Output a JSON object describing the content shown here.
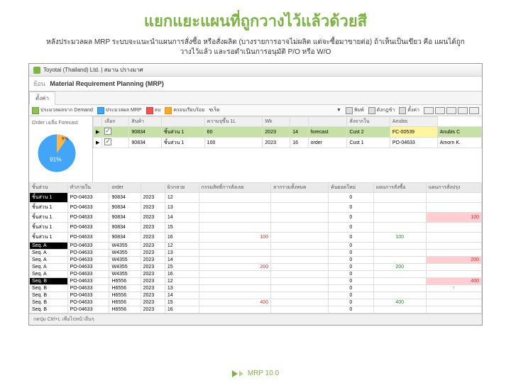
{
  "slide": {
    "title": "แยกแยะแผนที่ถูกวางไว้แล้วด้วยสี",
    "title_color": "#7cb342",
    "subtitle": "หลังประมวลผล MRP ระบบจะแนะนำแผนการสั่งซื้อ หรือสั่งผลิต (บางรายการอาจไม่ผลิต แต่จะซื้อมาขายต่อ) ถ้าเห็นเป็นเขียว คือ แผนได้ถูกวางไว้แล้ว และรอดำเนินการอนุมัติ P/O หรือ W/O"
  },
  "window": {
    "title": "Toyotai (Thailand) Ltd. | สมาน ปรางมาศ",
    "subheader": "Material Requirement Planning (MRP)",
    "back_label": "ย้อน",
    "tabs": {
      "tab1": "ตั้งค่า",
      "tab1_active": true
    },
    "toolbar": {
      "t1": "ประมวลผลจาก Demand",
      "t2": "ประมวลผล MRP",
      "t3": "ลบ",
      "t4": "ครอบเรียบร้อย",
      "t5": "ชเร็ด",
      "t6": "พิมพ์",
      "t7": "ดังกฎข้า",
      "t8": "ตั้งค่า"
    },
    "pie": {
      "label": "Order เฉลี่ย Forecast",
      "slices": [
        {
          "pct": 9,
          "color": "#ffb74d",
          "label": "9%"
        },
        {
          "pct": 91,
          "color": "#42a5f5",
          "label": "91%"
        }
      ]
    },
    "top_grid": {
      "headers": [
        "",
        "เลือก",
        "สินค้า",
        "",
        "ความจุขึ้น 1L",
        "Wk",
        "",
        "",
        "สั่งจากใน",
        "Anubis"
      ],
      "rows": [
        {
          "green": true,
          "chk": true,
          "c1": "90834",
          "c2": "ชิ้นส่วน 1",
          "c3": "60",
          "c4": "2023",
          "c5": "14",
          "c6": "forecast",
          "c7": "Cust 2",
          "c8": "FC-00539",
          "c9": "Anubis C",
          "yellow8": true
        },
        {
          "green": false,
          "chk": true,
          "c1": "90834",
          "c2": "ชิ้นส่วน 1",
          "c3": "100",
          "c4": "2023",
          "c5": "16",
          "c6": "order",
          "c7": "Cust 1",
          "c8": "PO-04633",
          "c9": "Amorn K."
        }
      ]
    },
    "main_grid": {
      "headers": [
        "ชิ้นส่วน",
        "ทำภายใน",
        "order",
        "",
        "ผิวกลวย",
        "กรรมสิทธิ์การสั่งเลย",
        "ลากรวมทั้งหมด",
        "ค้นยอดใหม่",
        "แผนการสั่งซื้อ",
        "แผนการสั่งปรุง"
      ],
      "rows": [
        {
          "black0": true,
          "c0": "ชิ้นส่วน 1",
          "c1": "PO-04633",
          "c2": "90834",
          "c3": "2023",
          "c4": "12",
          "c5": "",
          "c6": "",
          "c7": "0",
          "c8": "",
          "c9": ""
        },
        {
          "c0": "ชิ้นส่วน 1",
          "c1": "PO-04633",
          "c2": "90834",
          "c3": "2023",
          "c4": "13",
          "c5": "",
          "c6": "",
          "c7": "0",
          "c8": "",
          "c9": ""
        },
        {
          "c0": "ชิ้นส่วน 1",
          "c1": "PO-04633",
          "c2": "90834",
          "c3": "2023",
          "c4": "14",
          "c5": "",
          "c6": "",
          "c7": "0",
          "c8": "",
          "c9": "100",
          "red9": true
        },
        {
          "c0": "ชิ้นส่วน 1",
          "c1": "PO-04633",
          "c2": "90834",
          "c3": "2023",
          "c4": "15",
          "c5": "",
          "c6": "",
          "c7": "0",
          "c8": "",
          "c9": ""
        },
        {
          "c0": "ชิ้นส่วน 1",
          "c1": "PO-04633",
          "c2": "90834",
          "c3": "2023",
          "c4": "16",
          "c5": "100",
          "red5": true,
          "c6": "",
          "c7": "0",
          "c8": "100",
          "green8": true,
          "c9": ""
        },
        {
          "black0": true,
          "c0": "Seq. A",
          "c1": "PO-04633",
          "c2": "W4355",
          "c3": "2023",
          "c4": "12",
          "c5": "",
          "c6": "",
          "c7": "0",
          "c8": "",
          "c9": ""
        },
        {
          "c0": "Seq. A",
          "c1": "PO-04633",
          "c2": "W4355",
          "c3": "2023",
          "c4": "13",
          "c5": "",
          "c6": "",
          "c7": "0",
          "c8": "",
          "c9": ""
        },
        {
          "c0": "Seq. A",
          "c1": "PO-04633",
          "c2": "W4355",
          "c3": "2023",
          "c4": "14",
          "c5": "",
          "c6": "",
          "c7": "0",
          "c8": "",
          "c9": "200",
          "red9": true
        },
        {
          "c0": "Seq. A",
          "c1": "PO-04633",
          "c2": "W4355",
          "c3": "2023",
          "c4": "15",
          "c5": "200",
          "red5": true,
          "c6": "",
          "c7": "0",
          "c8": "200",
          "green8": true,
          "c9": ""
        },
        {
          "c0": "Seq. A",
          "c1": "PO-04633",
          "c2": "W4355",
          "c3": "2023",
          "c4": "16",
          "c5": "",
          "c6": "",
          "c7": "0",
          "c8": "",
          "c9": ""
        },
        {
          "black0": true,
          "c0": "Seq. B",
          "c1": "PO-04633",
          "c2": "H6556",
          "c3": "2023",
          "c4": "12",
          "c5": "",
          "c6": "",
          "c7": "0",
          "c8": "",
          "c9": "400",
          "red9": true
        },
        {
          "c0": "Seq. B",
          "c1": "PO-04633",
          "c2": "H6556",
          "c3": "2023",
          "c4": "13",
          "c5": "",
          "c6": "",
          "c7": "0",
          "c8": "",
          "c9": "↑",
          "arrow9": true
        },
        {
          "c0": "Seq. B",
          "c1": "PO-04633",
          "c2": "H6556",
          "c3": "2023",
          "c4": "14",
          "c5": "",
          "c6": "",
          "c7": "0",
          "c8": "",
          "c9": ""
        },
        {
          "c0": "Seq. B",
          "c1": "PO-04633",
          "c2": "H6556",
          "c3": "2023",
          "c4": "15",
          "c5": "400",
          "red5": true,
          "c6": "",
          "c7": "0",
          "c8": "400",
          "green8": true,
          "c9": ""
        },
        {
          "c0": "Seq. B",
          "c1": "PO-04633",
          "c2": "H6556",
          "c3": "2023",
          "c4": "16",
          "c5": "",
          "c6": "",
          "c7": "0",
          "c8": "",
          "c9": ""
        }
      ]
    },
    "statusbar": "กดปุ่ม Ctrl+L เพื่อไปหน้าอื่นๆ"
  },
  "footer": {
    "text": "MRP 10.0"
  }
}
